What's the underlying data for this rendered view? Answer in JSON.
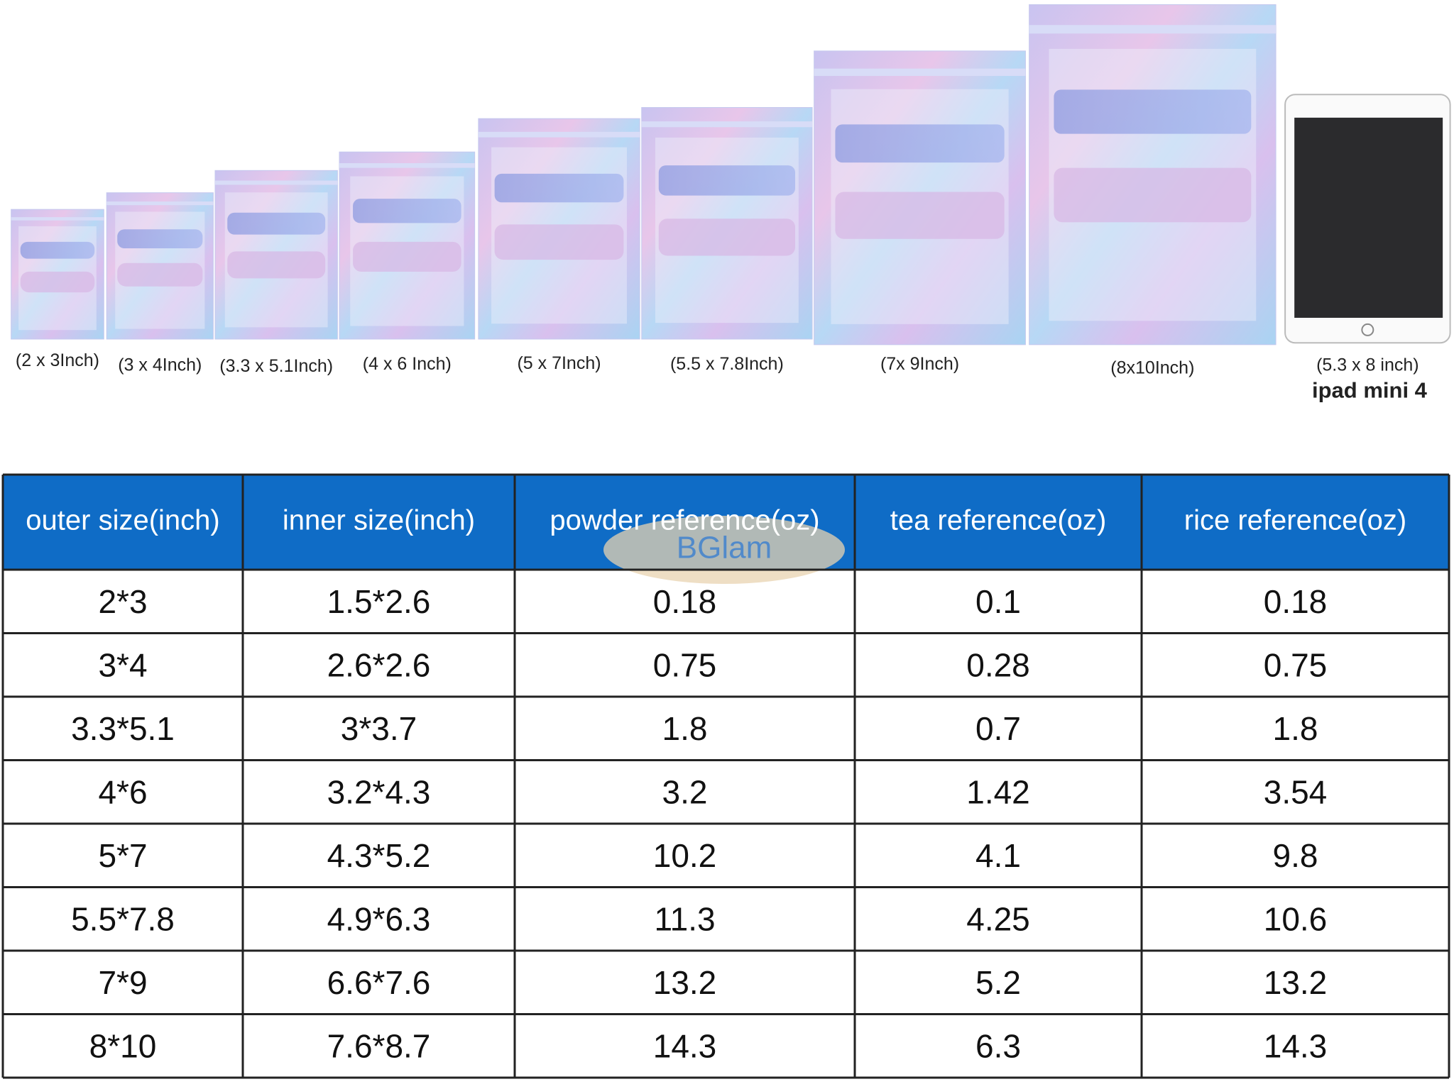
{
  "bags": [
    {
      "label": "(2 x 3Inch)"
    },
    {
      "label": "(3 x 4Inch)"
    },
    {
      "label": "(3.3 x 5.1Inch)"
    },
    {
      "label": "(4 x 6 Inch)"
    },
    {
      "label": "(5 x 7Inch)"
    },
    {
      "label": "(5.5 x 7.8Inch)"
    },
    {
      "label": "(7x 9Inch)"
    },
    {
      "label": "(8x10Inch)"
    }
  ],
  "ipad": {
    "size": "(5.3 x 8 inch)",
    "name": "ipad mini 4"
  },
  "watermark": "BGlam",
  "table": {
    "header": [
      "outer size(inch)",
      "inner size(inch)",
      "powder reference(oz)",
      "tea reference(oz)",
      "rice reference(oz)"
    ],
    "rows": [
      [
        "2*3",
        "1.5*2.6",
        "0.18",
        "0.1",
        "0.18"
      ],
      [
        "3*4",
        "2.6*2.6",
        "0.75",
        "0.28",
        "0.75"
      ],
      [
        "3.3*5.1",
        "3*3.7",
        "1.8",
        "0.7",
        "1.8"
      ],
      [
        "4*6",
        "3.2*4.3",
        "3.2",
        "1.42",
        "3.54"
      ],
      [
        "5*7",
        "4.3*5.2",
        "10.2",
        "4.1",
        "9.8"
      ],
      [
        "5.5*7.8",
        "4.9*6.3",
        "11.3",
        "4.25",
        "10.6"
      ],
      [
        "7*9",
        "6.6*7.6",
        "13.2",
        "5.2",
        "13.2"
      ],
      [
        "8*10",
        "7.6*8.7",
        "14.3",
        "6.3",
        "14.3"
      ]
    ]
  }
}
